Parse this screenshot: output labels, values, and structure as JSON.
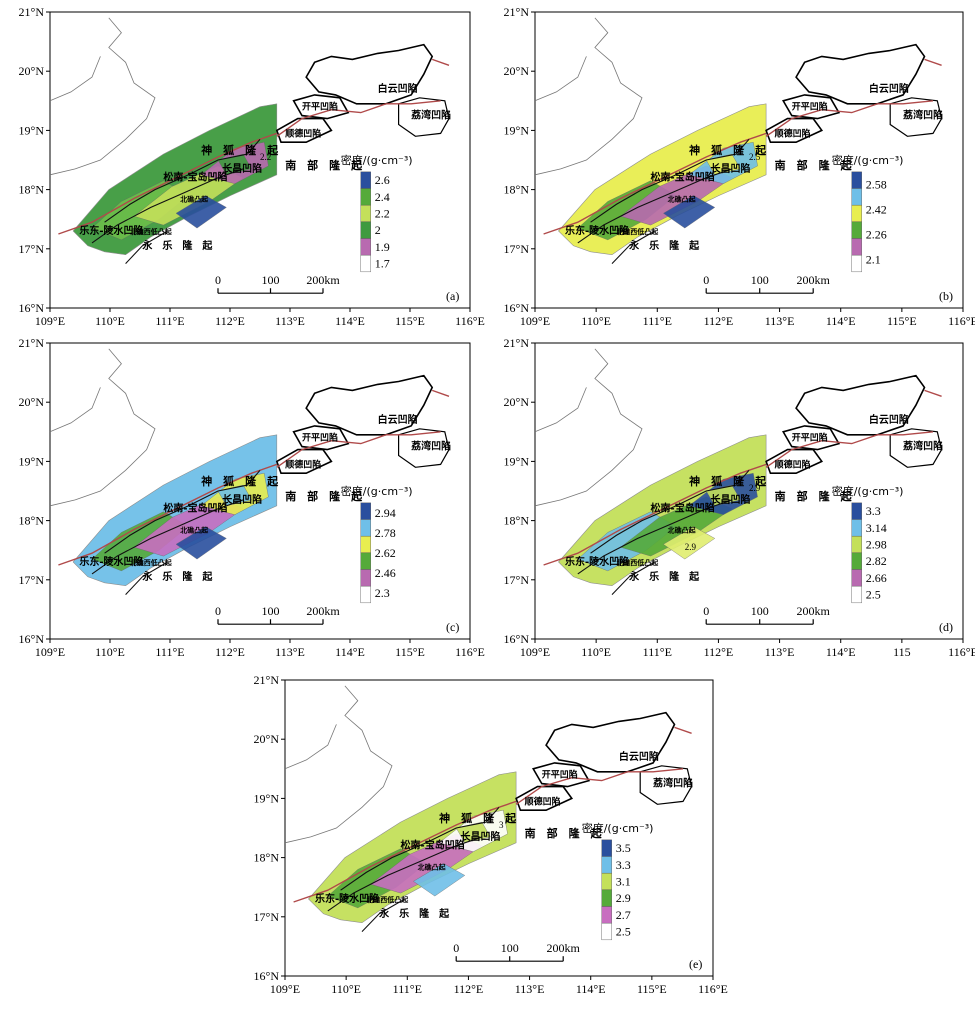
{
  "x_ticks": [
    "109°E",
    "110°E",
    "111°E",
    "112°E",
    "113°E",
    "114°E",
    "115°E",
    "116°E"
  ],
  "y_ticks": [
    "21°N",
    "20°N",
    "19°N",
    "18°N",
    "17°N",
    "16°N"
  ],
  "x_ticks_d": [
    "109°E",
    "110°E",
    "111°E",
    "112°E",
    "113°E",
    "114°E",
    "115",
    "116°E"
  ],
  "basins": {
    "baiyun": "白云凹陷",
    "liwan": "荔湾凹陷",
    "kaiping": "开平凹陷",
    "shunde": "顺德凹陷",
    "shenhu": "神　狐　隆　起",
    "nanbu": "南　部　隆　起",
    "songnan": "松南-宝岛凹陷",
    "changchang": "长昌凹陷",
    "ledong": "乐东-陵水凹陷",
    "yongle": "永　乐　隆　起",
    "beijiao": "北礁西低凸起",
    "beijiao2": "北礁凸起"
  },
  "scale": {
    "zero": "0",
    "hundred": "100",
    "two_hundred": "200km"
  },
  "legend_title": "密度/(g·cm⁻³)",
  "panels": [
    {
      "label": "(a)",
      "legend": [
        "2.6",
        "2.4",
        "2.2",
        "2",
        "1.9",
        "1.7"
      ],
      "legend_colors": [
        "#2a4f9e",
        "#55aa3a",
        "#c4e05a",
        "#3f9a3f",
        "#b86ab0",
        "#ffffff"
      ],
      "fill_colors": [
        "#3f9a3f",
        "#6cbf4a",
        "#c4e05a",
        "#b86ab0",
        "#2a4f9e"
      ],
      "contours": [
        "2.2"
      ]
    },
    {
      "label": "(b)",
      "legend": [
        "2.58",
        "2.42",
        "2.26",
        "2.1"
      ],
      "legend_colors": [
        "#2a4f9e",
        "#6fbfe8",
        "#e8ee50",
        "#55aa3a",
        "#b86ab0",
        "#ffffff"
      ],
      "fill_colors": [
        "#e8ee50",
        "#55aa3a",
        "#b86ab0",
        "#6fbfe8",
        "#2a4f9e"
      ],
      "contours": [
        "2.5"
      ]
    },
    {
      "label": "(c)",
      "legend": [
        "2.94",
        "2.78",
        "2.62",
        "2.46",
        "2.3"
      ],
      "legend_colors": [
        "#2a4f9e",
        "#6fbfe8",
        "#e8ee50",
        "#55aa3a",
        "#b86ab0",
        "#ffffff"
      ],
      "fill_colors": [
        "#6fbfe8",
        "#55aa3a",
        "#c86ec0",
        "#e8ee50",
        "#2a4f9e"
      ],
      "contours": []
    },
    {
      "label": "(d)",
      "legend": [
        "3.3",
        "3.14",
        "2.98",
        "2.82",
        "2.66",
        "2.5"
      ],
      "legend_colors": [
        "#2a4f9e",
        "#6fbfe8",
        "#c4e05a",
        "#55aa3a",
        "#b86ab0",
        "#ffffff"
      ],
      "fill_colors": [
        "#c4e05a",
        "#6fbfe8",
        "#55aa3a",
        "#2a4f9e",
        "#e0ee70"
      ],
      "contours": [
        "2.9",
        "2.9"
      ]
    },
    {
      "label": "(e)",
      "legend": [
        "3.5",
        "3.3",
        "3.1",
        "2.9",
        "2.7",
        "2.5"
      ],
      "legend_colors": [
        "#2a4f9e",
        "#6fbfe8",
        "#c4e05a",
        "#55aa3a",
        "#c86ec0",
        "#ffffff"
      ],
      "fill_colors": [
        "#c4e05a",
        "#55aa3a",
        "#c86ec0",
        "#ffffff",
        "#6fbfe8"
      ],
      "contours": [
        "3"
      ]
    }
  ]
}
